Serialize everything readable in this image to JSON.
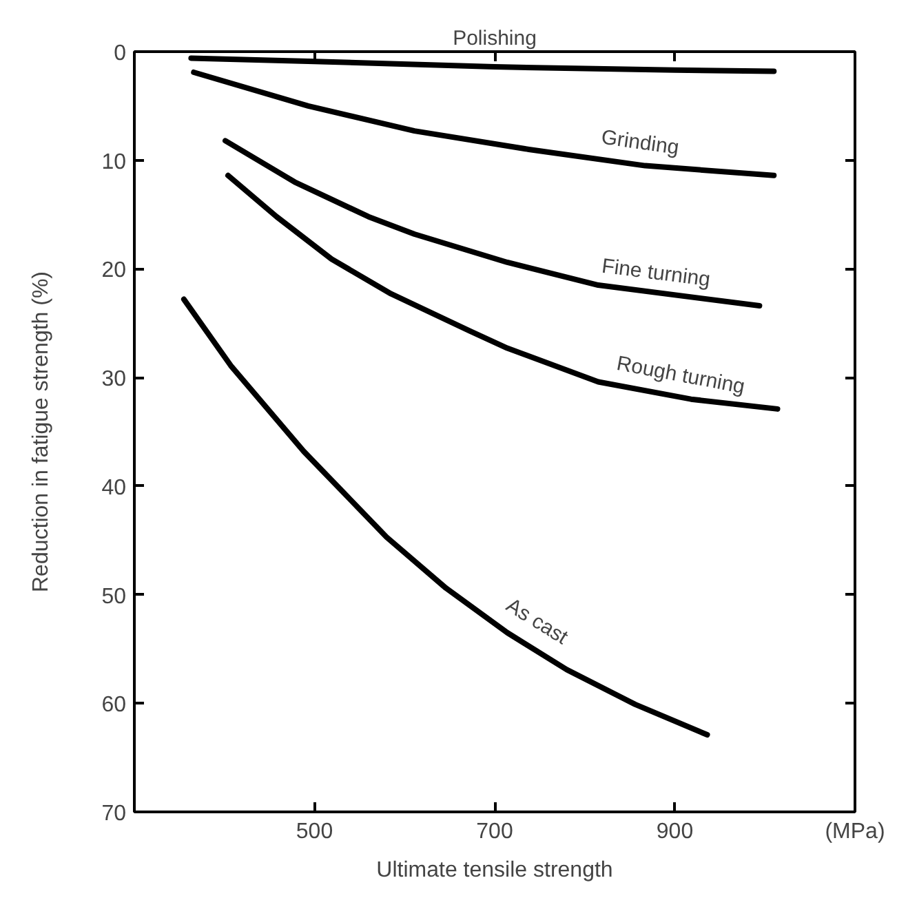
{
  "chart_data": {
    "type": "line",
    "xlabel": "Ultimate tensile strength",
    "ylabel": "Reduction in fatigue strength (%)",
    "xlim": [
      300,
      1100
    ],
    "ylim": [
      70,
      0
    ],
    "xticks": [
      500,
      700,
      900,
      {
        "value": 1100,
        "label": "(MPa)"
      }
    ],
    "yticks": [
      0,
      10,
      20,
      30,
      40,
      50,
      60,
      70
    ],
    "grid": false,
    "marker": "none",
    "line_style": "solid",
    "series": [
      {
        "color": "#000000",
        "x": [
          363,
          500,
          700,
          900,
          1010
        ],
        "values": [
          0.6,
          0.9,
          1.4,
          1.7,
          1.8
        ]
      },
      {
        "color": "#000000",
        "x": [
          366,
          493,
          611,
          738,
          867,
          1010
        ],
        "values": [
          1.9,
          5.0,
          7.3,
          9.0,
          10.5,
          11.4
        ]
      },
      {
        "color": "#000000",
        "x": [
          401,
          478,
          560,
          611,
          714,
          815,
          994
        ],
        "values": [
          8.2,
          12.0,
          15.2,
          16.8,
          19.4,
          21.5,
          23.4
        ]
      },
      {
        "color": "#000000",
        "x": [
          404,
          458,
          519,
          585,
          672,
          714,
          815,
          918,
          1014
        ],
        "values": [
          11.4,
          15.2,
          19.1,
          22.3,
          25.7,
          27.3,
          30.4,
          32.0,
          32.9
        ]
      },
      {
        "color": "#000000",
        "x": [
          355,
          407,
          488,
          580,
          646,
          714,
          780,
          856,
          936
        ],
        "values": [
          22.8,
          28.9,
          36.8,
          44.7,
          49.4,
          53.5,
          56.9,
          60.1,
          62.9
        ]
      }
    ],
    "annotations": [
      {
        "text": "Polishing",
        "x": 700,
        "y": 1.4
      },
      {
        "text": "Grinding",
        "x": 858,
        "y": 10.4
      },
      {
        "text": "Fine turning",
        "x": 876,
        "y": 22.4
      },
      {
        "text": "Rough turning",
        "x": 902,
        "y": 31.8
      },
      {
        "text": "As cast",
        "x": 734,
        "y": 54.2
      }
    ]
  }
}
